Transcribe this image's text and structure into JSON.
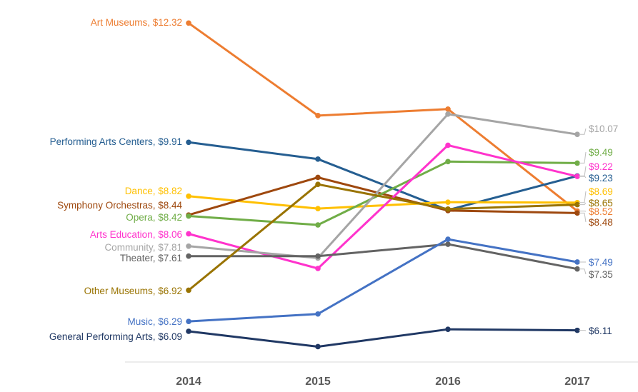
{
  "chart_data": {
    "type": "line",
    "title": "",
    "xlabel": "",
    "ylabel": "",
    "x": [
      "2014",
      "2015",
      "2016",
      "2017"
    ],
    "ylim": [
      5.5,
      12.6
    ],
    "grid": false,
    "legend": "none",
    "series": [
      {
        "name": "Art Museums",
        "color": "#ED7D31",
        "values": [
          12.32,
          10.45,
          10.58,
          8.52
        ],
        "left_label": "Art Museums,  $12.32",
        "right_label": "$8.52"
      },
      {
        "name": "Performing Arts Centers",
        "color": "#255E91",
        "values": [
          9.91,
          9.57,
          8.54,
          9.23
        ],
        "left_label": "Performing Arts Centers, $9.91",
        "right_label": "$9.23"
      },
      {
        "name": "Dance",
        "color": "#FFC000",
        "values": [
          8.82,
          8.57,
          8.7,
          8.69
        ],
        "left_label": "Dance,  $8.82",
        "right_label": "$8.69"
      },
      {
        "name": "Symphony Orchestras",
        "color": "#9E480E",
        "values": [
          8.44,
          9.2,
          8.53,
          8.48
        ],
        "left_label": "Symphony Orchestras, $8.44",
        "right_label": "$8.48"
      },
      {
        "name": "Opera",
        "color": "#70AD47",
        "values": [
          8.42,
          8.24,
          9.52,
          9.49
        ],
        "left_label": "Opera, $8.42",
        "right_label": "$9.49"
      },
      {
        "name": "Arts Education",
        "color": "#FF33CC",
        "values": [
          8.06,
          7.36,
          9.85,
          9.22
        ],
        "left_label": "Arts Education,  $8.06",
        "right_label": "$9.22"
      },
      {
        "name": "Community",
        "color": "#A5A5A5",
        "values": [
          7.81,
          7.57,
          10.48,
          10.07
        ],
        "left_label": "Community, $7.81",
        "right_label": "$10.07"
      },
      {
        "name": "Theater",
        "color": "#636363",
        "values": [
          7.61,
          7.61,
          7.85,
          7.35
        ],
        "left_label": "Theater, $7.61",
        "right_label": "$7.35"
      },
      {
        "name": "Other Museums",
        "color": "#997300",
        "values": [
          6.92,
          9.06,
          8.56,
          8.65
        ],
        "left_label": "Other Museums,  $6.92",
        "right_label": "$8.65"
      },
      {
        "name": "Music",
        "color": "#4472C4",
        "values": [
          6.29,
          6.44,
          7.95,
          7.49
        ],
        "left_label": "Music,  $6.29",
        "right_label": "$7.49"
      },
      {
        "name": "General Performing Arts",
        "color": "#203864",
        "values": [
          6.09,
          5.78,
          6.13,
          6.11
        ],
        "left_label": "General Performing Arts,  $6.09",
        "right_label": "$6.11"
      }
    ]
  }
}
